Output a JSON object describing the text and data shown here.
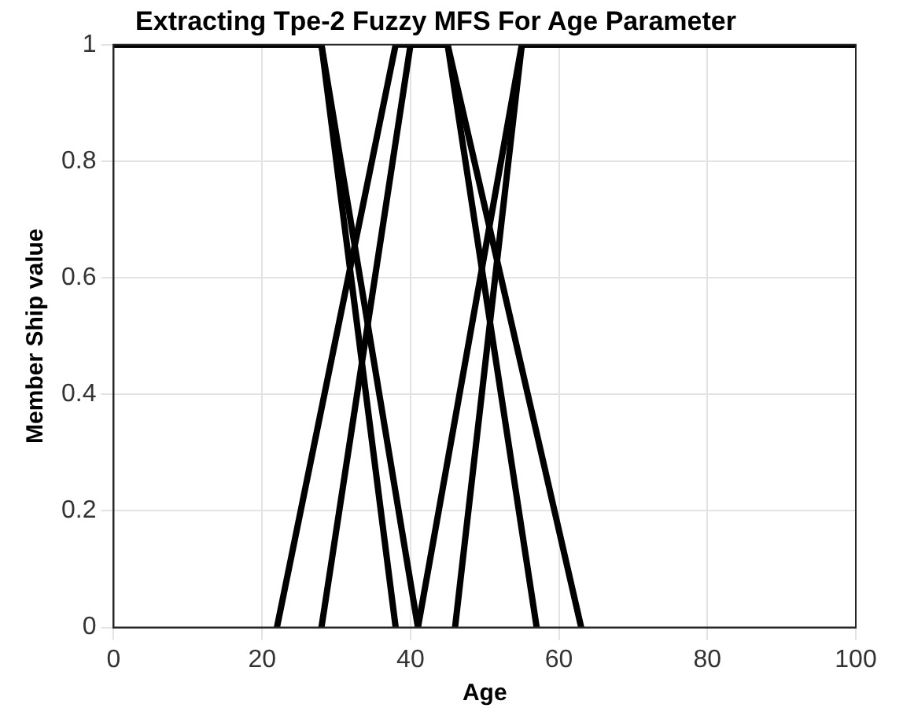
{
  "chart_data": {
    "type": "line",
    "title": "Extracting Tpe-2 Fuzzy MFS For Age Parameter",
    "xlabel": "Age",
    "ylabel": "Member Ship value",
    "series": [
      {
        "color": "#000000",
        "x": [
          0,
          28,
          41
        ],
        "values": [
          1,
          1,
          0
        ]
      },
      {
        "color": "#000000",
        "x": [
          0,
          28,
          38
        ],
        "values": [
          1,
          1,
          0
        ]
      },
      {
        "color": "#000000",
        "x": [
          22,
          38,
          45,
          63
        ],
        "values": [
          0,
          1,
          1,
          0
        ]
      },
      {
        "color": "#000000",
        "x": [
          28,
          40,
          45,
          57
        ],
        "values": [
          0,
          1,
          1,
          0
        ]
      },
      {
        "color": "#000000",
        "x": [
          41,
          55,
          100
        ],
        "values": [
          0,
          1,
          1
        ]
      },
      {
        "color": "#000000",
        "x": [
          46,
          55,
          100
        ],
        "values": [
          0,
          1,
          1
        ]
      }
    ],
    "xlim": [
      0,
      100
    ],
    "xticks": [
      0,
      20,
      40,
      60,
      80,
      100
    ],
    "ylim": [
      0,
      1
    ],
    "yticks": [
      0,
      0.2,
      0.4,
      0.6,
      0.8,
      1
    ],
    "grid": true,
    "legend": false,
    "marker": "none",
    "line_style": "solid"
  }
}
